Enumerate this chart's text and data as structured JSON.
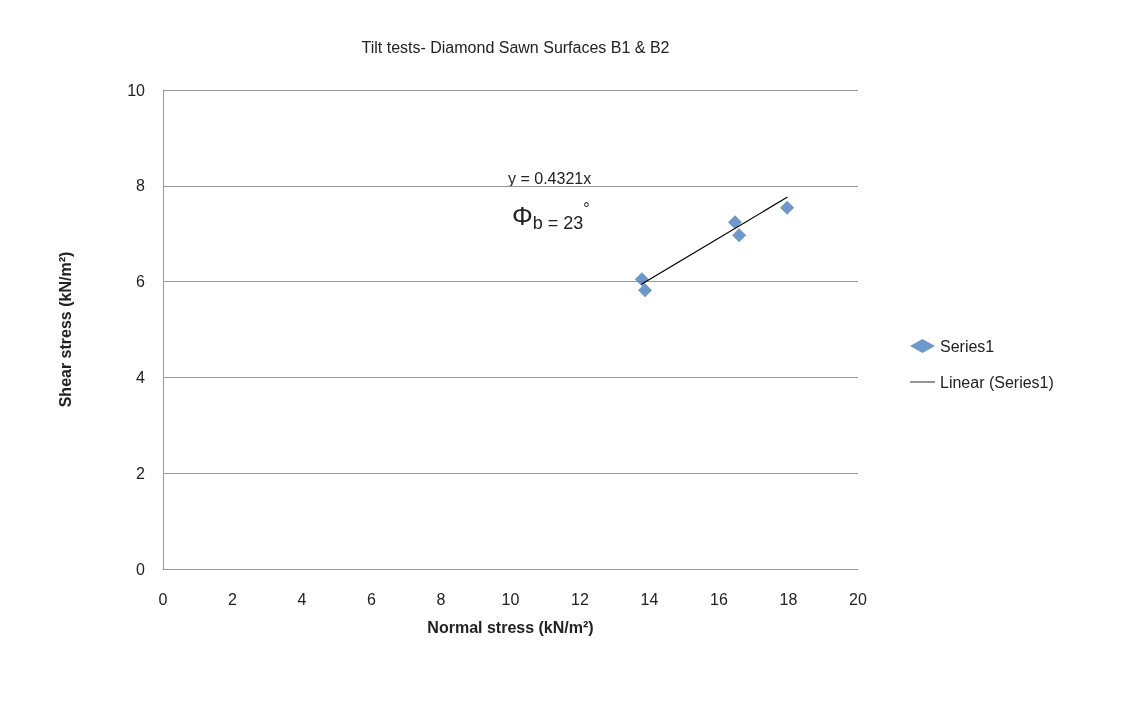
{
  "chart_data": {
    "type": "scatter",
    "title": "Tilt tests- Diamond Sawn Surfaces B1 & B2",
    "xlabel": "Normal stress (kN/m²)",
    "ylabel": "Shear stress (kN/m²)",
    "series": [
      {
        "name": "Series1",
        "color": "#4a7ebb",
        "marker": "diamond",
        "x": [
          13.78,
          13.87,
          16.46,
          16.58,
          17.96
        ],
        "values": [
          6.05,
          5.82,
          7.24,
          6.97,
          7.54
        ]
      },
      {
        "name": "Linear (Series1)",
        "type": "line",
        "color": "#000000",
        "marker": "none",
        "line_style": "solid",
        "x": [
          13.78,
          17.96
        ],
        "values": [
          5.95,
          7.76
        ]
      }
    ],
    "xlim": [
      0,
      20
    ],
    "xticks": [
      0,
      2,
      4,
      6,
      8,
      10,
      12,
      14,
      16,
      18,
      20
    ],
    "ylim": [
      0,
      10
    ],
    "yticks": [
      0,
      2,
      4,
      6,
      8,
      10
    ],
    "grid": "y",
    "legend": "right",
    "annotations": [
      "y = 0.4321x",
      "Φ$_{b = 23}$$^{°}$"
    ]
  }
}
